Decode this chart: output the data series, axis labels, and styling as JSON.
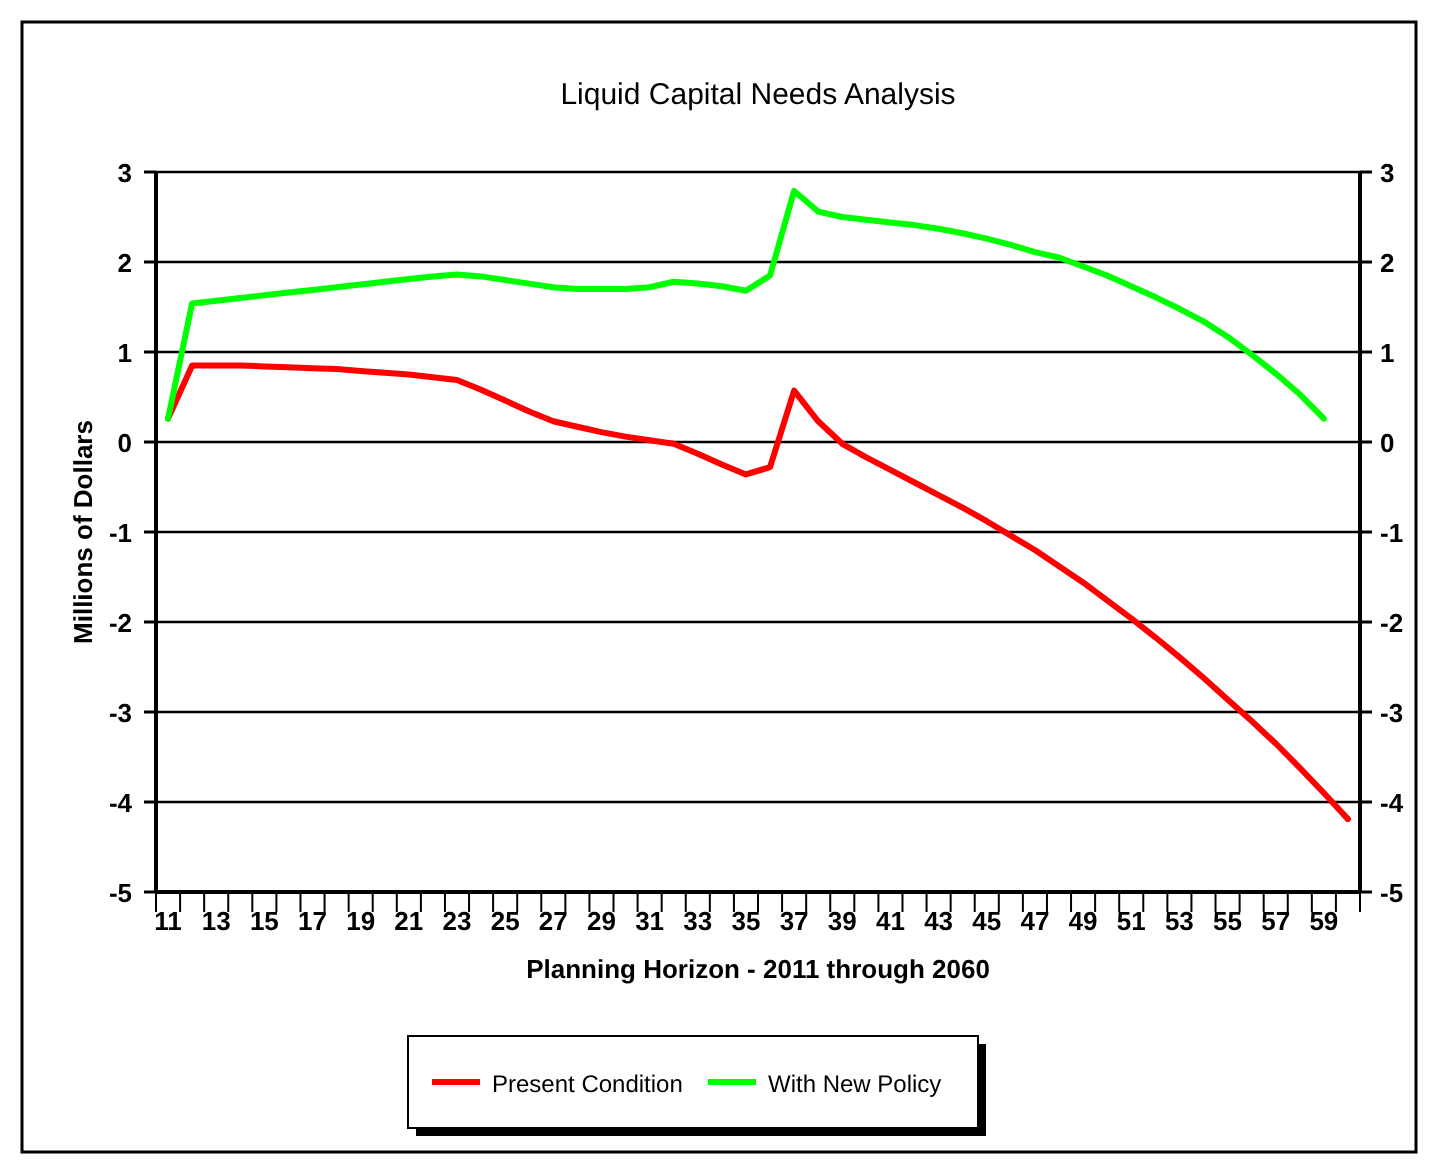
{
  "chart_data": {
    "type": "line",
    "title": "Liquid Capital Needs Analysis",
    "xlabel": "Planning Horizon - 2011 through 2060",
    "ylabel": "Millions of Dollars",
    "categories": [
      "11",
      null,
      "13",
      null,
      "15",
      null,
      "17",
      null,
      "19",
      null,
      "21",
      null,
      "23",
      null,
      "25",
      null,
      "27",
      null,
      "29",
      null,
      "31",
      null,
      "33",
      null,
      "35",
      null,
      "37",
      null,
      "39",
      null,
      "41",
      null,
      "43",
      null,
      "45",
      null,
      "47",
      null,
      "49",
      null,
      "51",
      null,
      "53",
      null,
      "55",
      null,
      "57",
      null,
      "59",
      null
    ],
    "series": [
      {
        "name": "Present Condition",
        "color": "#ff0000",
        "values": [
          0.26,
          0.85,
          0.85,
          0.85,
          0.84,
          0.83,
          0.82,
          0.81,
          0.79,
          0.77,
          0.75,
          0.72,
          0.69,
          0.58,
          0.46,
          0.34,
          0.23,
          0.17,
          0.11,
          0.06,
          0.02,
          -0.02,
          -0.13,
          -0.25,
          -0.36,
          -0.28,
          0.57,
          0.23,
          -0.02,
          -0.17,
          -0.31,
          -0.45,
          -0.59,
          -0.73,
          -0.88,
          -1.04,
          -1.2,
          -1.38,
          -1.56,
          -1.76,
          -1.96,
          -2.17,
          -2.39,
          -2.62,
          -2.86,
          -3.1,
          -3.35,
          -3.62,
          -3.9,
          -4.19
        ]
      },
      {
        "name": "With New Policy",
        "color": "#00ff00",
        "values": [
          0.26,
          1.54,
          1.57,
          1.6,
          1.63,
          1.66,
          1.69,
          1.72,
          1.75,
          1.78,
          1.81,
          1.84,
          1.86,
          1.84,
          1.8,
          1.76,
          1.72,
          1.7,
          1.7,
          1.7,
          1.72,
          1.78,
          1.76,
          1.73,
          1.68,
          1.85,
          2.79,
          2.56,
          2.5,
          2.47,
          2.44,
          2.41,
          2.37,
          2.32,
          2.26,
          2.19,
          2.11,
          2.05,
          1.95,
          1.85,
          1.73,
          1.61,
          1.48,
          1.34,
          1.17,
          0.97,
          0.76,
          0.53,
          0.26,
          null
        ]
      }
    ],
    "ylim": [
      -5,
      3
    ],
    "yticks": [
      -5,
      -4,
      -3,
      -2,
      -1,
      0,
      1,
      2,
      3
    ],
    "y2lim": [
      -5,
      3
    ],
    "y2ticks": [
      -5,
      -4,
      -3,
      -2,
      -1,
      0,
      1,
      2,
      3
    ],
    "grid": "y",
    "legend": "bottom",
    "marker": "none",
    "line_style": "solid"
  }
}
